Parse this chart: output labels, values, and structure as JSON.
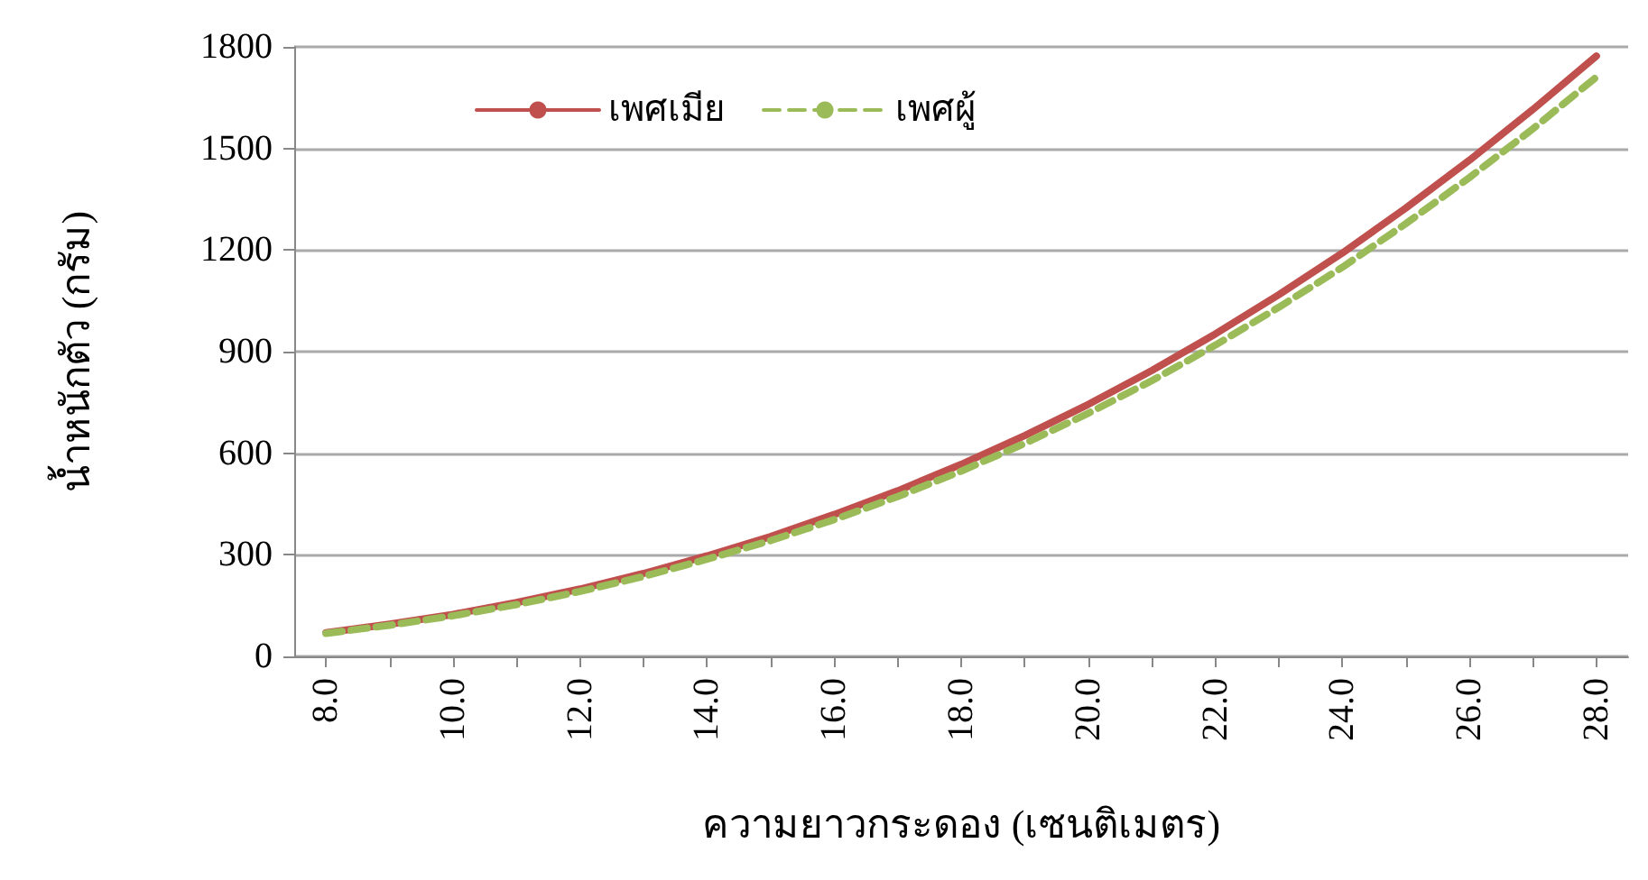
{
  "chart_data": {
    "type": "line",
    "xlabel": "ความยาวกระดอง (เซนติเมตร)",
    "ylabel": "น้ำหนักตัว (กรัม)",
    "x": [
      8,
      9,
      10,
      11,
      12,
      13,
      14,
      15,
      16,
      17,
      18,
      19,
      20,
      21,
      22,
      23,
      24,
      25,
      26,
      27,
      28
    ],
    "series": [
      {
        "name": "เพศเมีย",
        "color": "#c0504d",
        "line_style": "solid",
        "values": [
          70,
          95,
          124,
          159,
          199,
          245,
          297,
          354,
          419,
          489,
          567,
          652,
          744,
          844,
          952,
          1068,
          1191,
          1324,
          1465,
          1615,
          1773
        ]
      },
      {
        "name": "เพศผู้",
        "color": "#9bbb59",
        "line_style": "dashed",
        "values": [
          68,
          92,
          120,
          153,
          192,
          236,
          287,
          342,
          404,
          472,
          547,
          629,
          718,
          814,
          919,
          1031,
          1149,
          1278,
          1414,
          1558,
          1711
        ]
      }
    ],
    "xlim": [
      7.5,
      28.5
    ],
    "xticks": [
      {
        "value": 8,
        "label": "8.0"
      },
      {
        "value": 9,
        "label": null
      },
      {
        "value": 10,
        "label": "10.0"
      },
      {
        "value": 11,
        "label": null
      },
      {
        "value": 12,
        "label": "12.0"
      },
      {
        "value": 13,
        "label": null
      },
      {
        "value": 14,
        "label": "14.0"
      },
      {
        "value": 15,
        "label": null
      },
      {
        "value": 16,
        "label": "16.0"
      },
      {
        "value": 17,
        "label": null
      },
      {
        "value": 18,
        "label": "18.0"
      },
      {
        "value": 19,
        "label": null
      },
      {
        "value": 20,
        "label": "20.0"
      },
      {
        "value": 21,
        "label": null
      },
      {
        "value": 22,
        "label": "22.0"
      },
      {
        "value": 23,
        "label": null
      },
      {
        "value": 24,
        "label": "24.0"
      },
      {
        "value": 25,
        "label": null
      },
      {
        "value": 26,
        "label": "26.0"
      },
      {
        "value": 27,
        "label": null
      },
      {
        "value": 28,
        "label": "28.0"
      }
    ],
    "ylim": [
      0,
      1800
    ],
    "yticks": [
      0,
      300,
      600,
      900,
      1200,
      1500,
      1800
    ],
    "grid": "y",
    "legend": "top left",
    "marker": "none"
  }
}
